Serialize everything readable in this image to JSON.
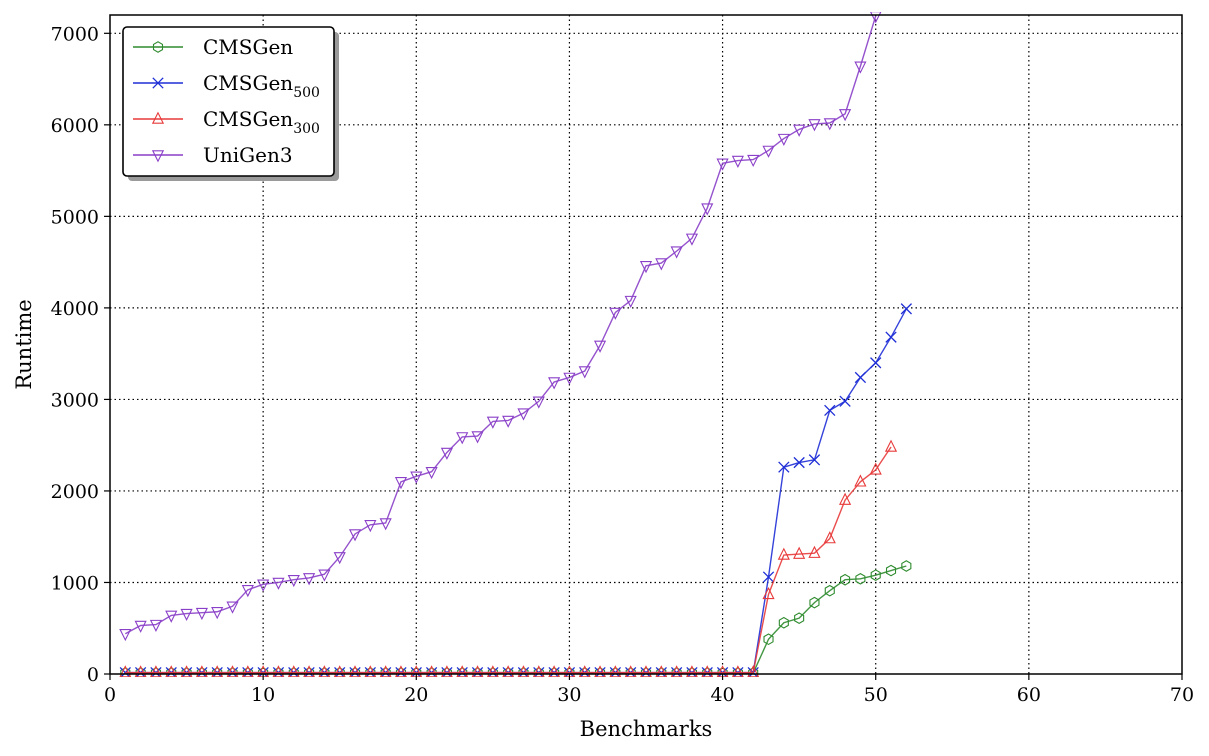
{
  "chart_data": {
    "type": "line",
    "xlabel": "Benchmarks",
    "ylabel": "Runtime",
    "xlim": [
      0,
      70
    ],
    "ylim": [
      0,
      7200
    ],
    "xticks": [
      0,
      10,
      20,
      30,
      40,
      50,
      60,
      70
    ],
    "yticks": [
      0,
      1000,
      2000,
      3000,
      4000,
      5000,
      6000,
      7000
    ],
    "grid": true,
    "legend_position": "top-left",
    "series": [
      {
        "name": "CMSGen",
        "color": "#2e8b2e",
        "marker": "hexagon",
        "legend": {
          "base": "CMSGen",
          "sub": ""
        },
        "x": [
          1,
          2,
          3,
          4,
          5,
          6,
          7,
          8,
          9,
          10,
          11,
          12,
          13,
          14,
          15,
          16,
          17,
          18,
          19,
          20,
          21,
          22,
          23,
          24,
          25,
          26,
          27,
          28,
          29,
          30,
          31,
          32,
          33,
          34,
          35,
          36,
          37,
          38,
          39,
          40,
          41,
          42,
          43,
          44,
          45,
          46,
          47,
          48,
          49,
          50,
          51,
          52
        ],
        "y": [
          10,
          10,
          10,
          10,
          10,
          10,
          10,
          10,
          10,
          10,
          10,
          10,
          10,
          10,
          10,
          10,
          10,
          10,
          10,
          10,
          10,
          10,
          10,
          10,
          10,
          10,
          10,
          10,
          10,
          10,
          10,
          10,
          10,
          10,
          10,
          10,
          10,
          10,
          10,
          10,
          10,
          10,
          380,
          560,
          610,
          780,
          910,
          1030,
          1040,
          1080,
          1130,
          1180
        ]
      },
      {
        "name": "CMSGen500",
        "color": "#1f2fd6",
        "marker": "x",
        "legend": {
          "base": "CMSGen",
          "sub": "500"
        },
        "x": [
          1,
          2,
          3,
          4,
          5,
          6,
          7,
          8,
          9,
          10,
          11,
          12,
          13,
          14,
          15,
          16,
          17,
          18,
          19,
          20,
          21,
          22,
          23,
          24,
          25,
          26,
          27,
          28,
          29,
          30,
          31,
          32,
          33,
          34,
          35,
          36,
          37,
          38,
          39,
          40,
          41,
          42,
          43,
          44,
          45,
          46,
          47,
          48,
          49,
          50,
          51,
          52
        ],
        "y": [
          15,
          15,
          15,
          15,
          15,
          15,
          15,
          15,
          15,
          15,
          15,
          15,
          15,
          15,
          15,
          15,
          15,
          15,
          15,
          15,
          15,
          15,
          15,
          15,
          15,
          15,
          15,
          15,
          15,
          15,
          15,
          15,
          15,
          15,
          15,
          15,
          15,
          15,
          15,
          15,
          15,
          15,
          1060,
          2260,
          2310,
          2340,
          2880,
          2980,
          3240,
          3400,
          3680,
          3990
        ]
      },
      {
        "name": "CMSGen300",
        "color": "#e83a3a",
        "marker": "triangle-up",
        "legend": {
          "base": "CMSGen",
          "sub": "300"
        },
        "x": [
          1,
          2,
          3,
          4,
          5,
          6,
          7,
          8,
          9,
          10,
          11,
          12,
          13,
          14,
          15,
          16,
          17,
          18,
          19,
          20,
          21,
          22,
          23,
          24,
          25,
          26,
          27,
          28,
          29,
          30,
          31,
          32,
          33,
          34,
          35,
          36,
          37,
          38,
          39,
          40,
          41,
          42,
          43,
          44,
          45,
          46,
          47,
          48,
          49,
          50,
          51
        ],
        "y": [
          15,
          15,
          15,
          15,
          15,
          15,
          15,
          15,
          15,
          15,
          15,
          15,
          15,
          15,
          15,
          15,
          15,
          15,
          15,
          15,
          15,
          15,
          15,
          15,
          15,
          15,
          15,
          15,
          15,
          15,
          15,
          15,
          15,
          15,
          15,
          15,
          15,
          15,
          15,
          15,
          15,
          15,
          870,
          1300,
          1310,
          1320,
          1480,
          1900,
          2100,
          2230,
          2480
        ]
      },
      {
        "name": "UniGen3",
        "color": "#8a3fc8",
        "marker": "triangle-down",
        "legend": {
          "base": "UniGen3",
          "sub": ""
        },
        "x": [
          1,
          2,
          3,
          4,
          5,
          6,
          7,
          8,
          9,
          10,
          11,
          12,
          13,
          14,
          15,
          16,
          17,
          18,
          19,
          20,
          21,
          22,
          23,
          24,
          25,
          26,
          27,
          28,
          29,
          30,
          31,
          32,
          33,
          34,
          35,
          36,
          37,
          38,
          39,
          40,
          41,
          42,
          43,
          44,
          45,
          46,
          47,
          48,
          49,
          50
        ],
        "y": [
          440,
          530,
          540,
          640,
          660,
          670,
          680,
          740,
          920,
          980,
          1000,
          1030,
          1050,
          1090,
          1280,
          1530,
          1630,
          1650,
          2100,
          2160,
          2210,
          2420,
          2590,
          2600,
          2760,
          2770,
          2850,
          2980,
          3190,
          3240,
          3310,
          3590,
          3950,
          4080,
          4460,
          4490,
          4620,
          4760,
          5090,
          5580,
          5610,
          5620,
          5720,
          5850,
          5950,
          6010,
          6020,
          6120,
          6640,
          7190
        ]
      }
    ]
  }
}
